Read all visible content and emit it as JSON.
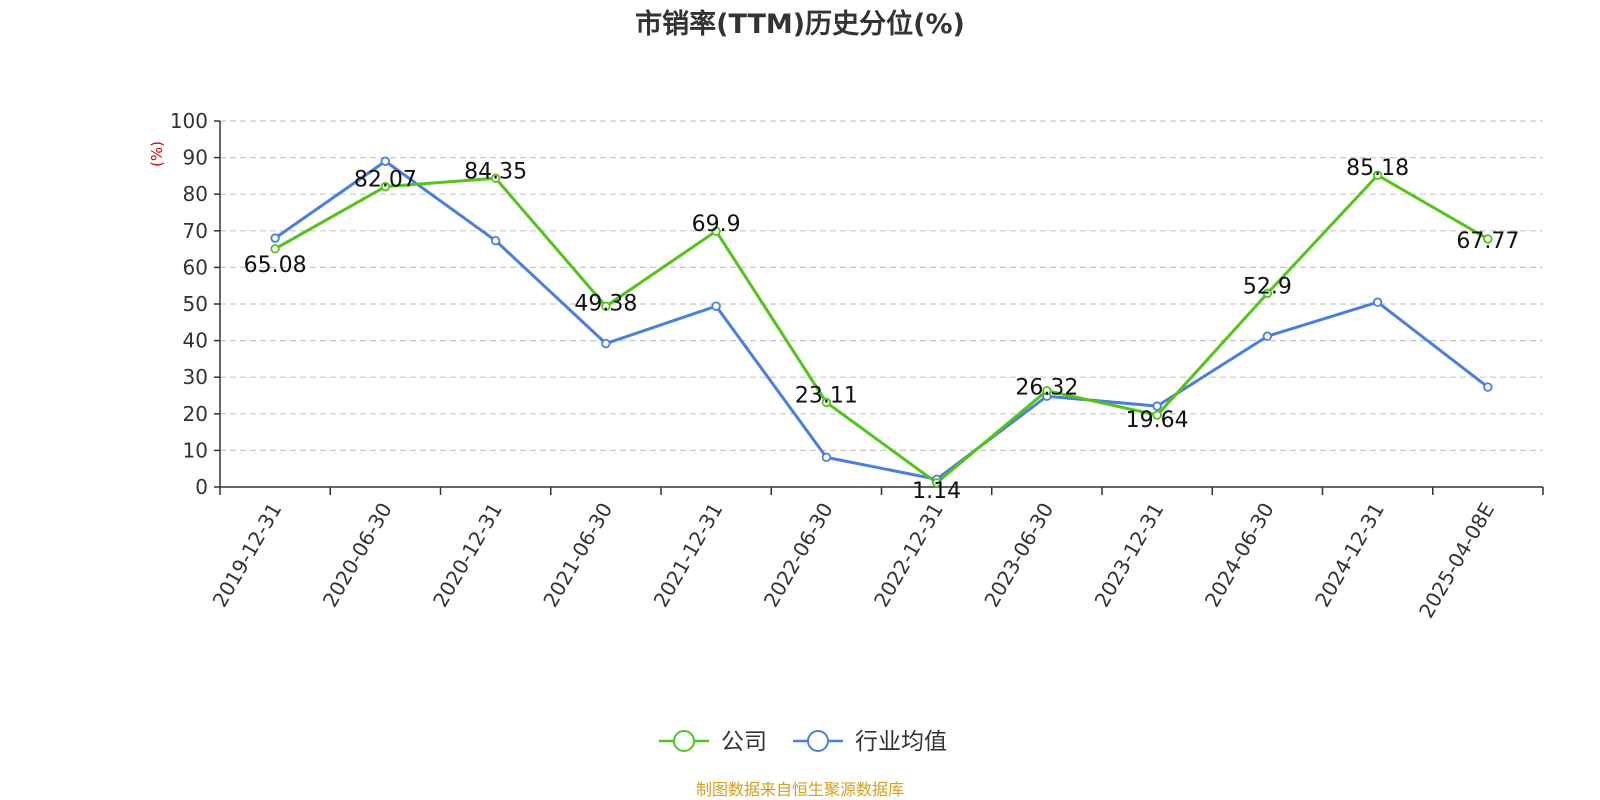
{
  "chart_data": {
    "type": "line",
    "title": "市销率(TTM)历史分位(%)",
    "y_unit": "(%)",
    "categories": [
      "2019-12-31",
      "2020-06-30",
      "2020-12-31",
      "2021-06-30",
      "2021-12-31",
      "2022-06-30",
      "2022-12-31",
      "2023-06-30",
      "2023-12-31",
      "2024-06-30",
      "2024-12-31",
      "2025-04-08E"
    ],
    "ylim": [
      0,
      100
    ],
    "yticks": [
      0,
      10,
      20,
      30,
      40,
      50,
      60,
      70,
      80,
      90,
      100
    ],
    "grid": true,
    "legend_position": "bottom-center",
    "series": [
      {
        "name": "公司",
        "color": "#52c41a",
        "values": [
          65.08,
          82.07,
          84.35,
          49.38,
          69.9,
          23.11,
          1.14,
          26.32,
          19.64,
          52.9,
          85.18,
          67.77
        ],
        "labels": [
          "65.08",
          "82.07",
          "84.35",
          "49.38",
          "69.9",
          "23.11",
          "1.14",
          "26.32",
          "19.64",
          "52.9",
          "85.18",
          "67.77"
        ]
      },
      {
        "name": "行业均值",
        "color": "#4a7fdb",
        "values": [
          68.0,
          89.0,
          67.3,
          39.2,
          49.4,
          8.1,
          2.1,
          24.8,
          22.1,
          41.2,
          50.5,
          27.3
        ]
      }
    ],
    "source": "制图数据来自恒生聚源数据库"
  }
}
